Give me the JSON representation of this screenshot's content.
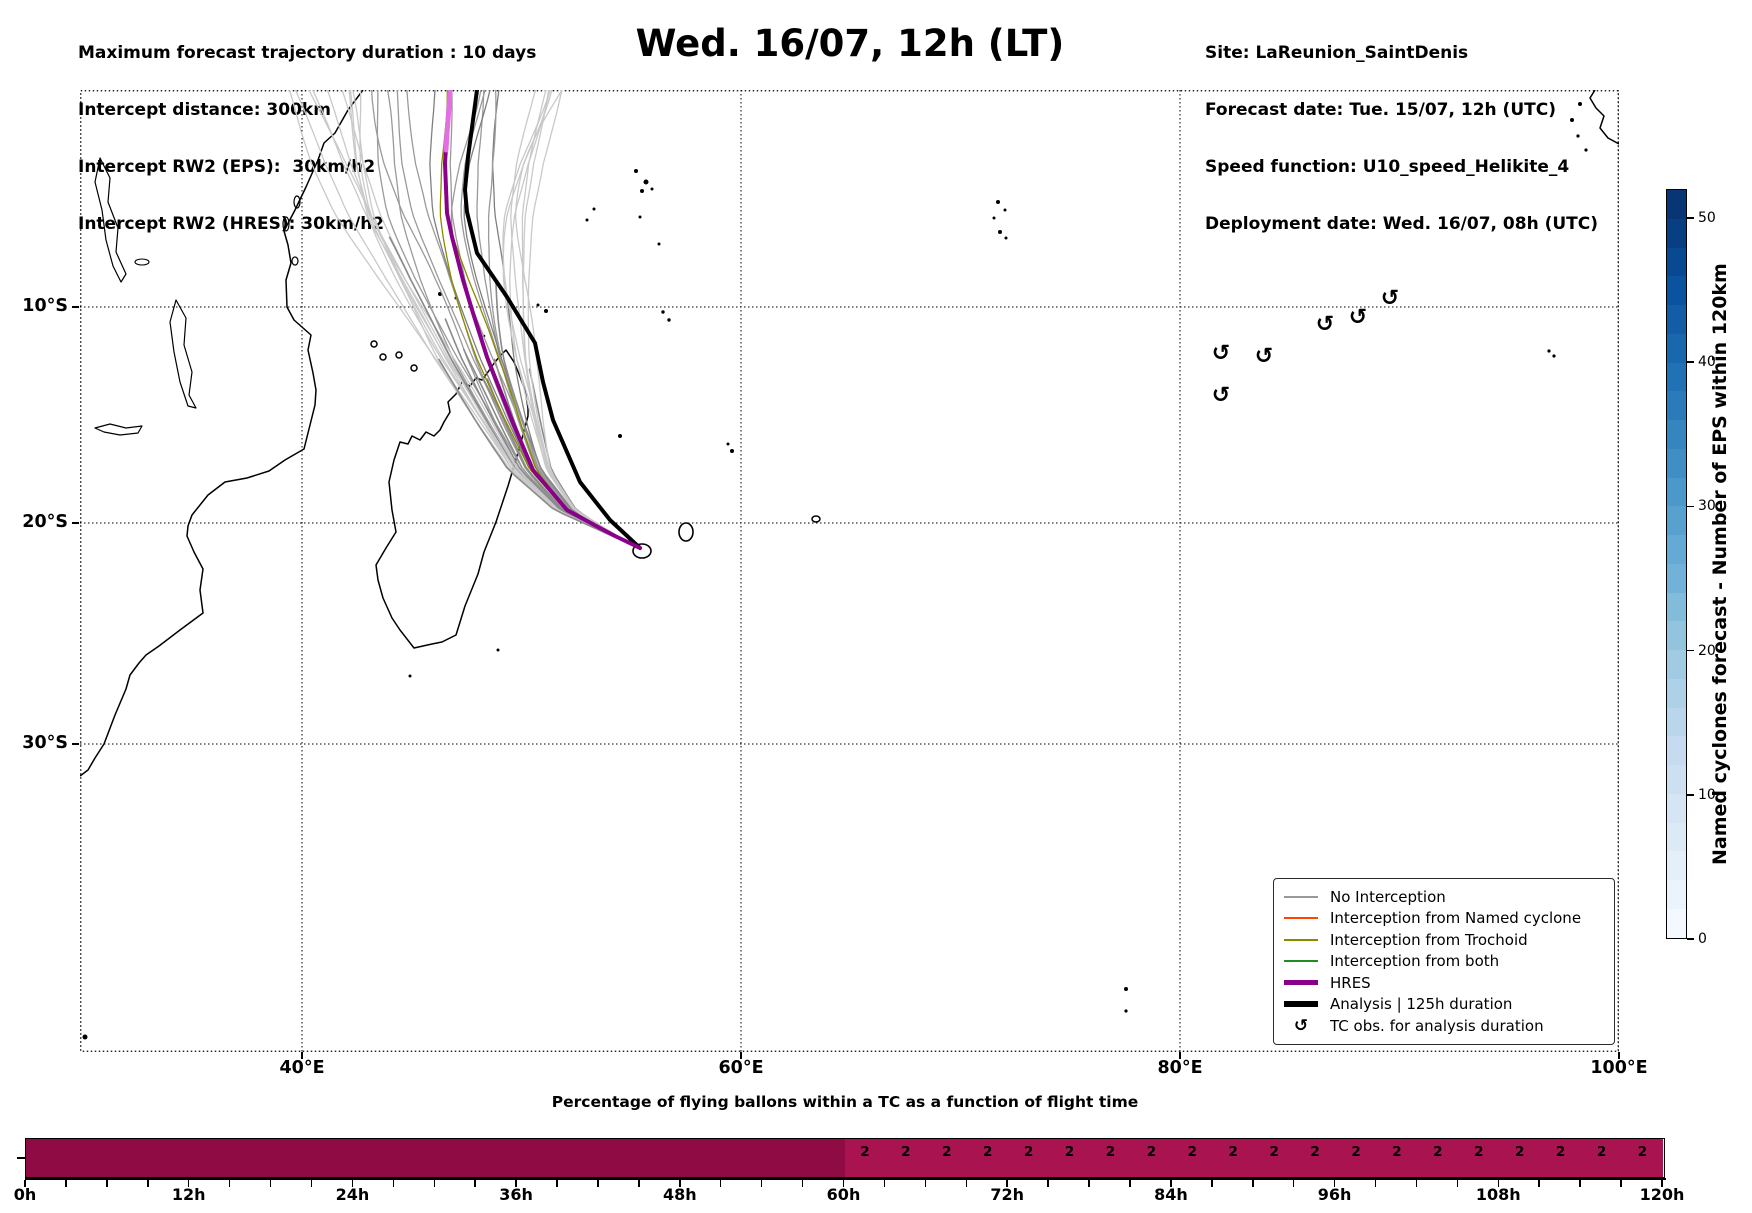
{
  "header": {
    "left_lines": [
      "Maximum forecast trajectory duration : 10 days",
      "Intercept distance: 300km",
      "Intercept RW2 (EPS):  30km/h2",
      "Intercept RW2 (HRES): 30km/h2"
    ],
    "title": "Wed. 16/07, 12h (LT)",
    "right_lines": [
      "Site: LaReunion_SaintDenis",
      "Forecast date: Tue. 15/07, 12h (UTC)",
      "Speed function: U10_speed_Helikite_4",
      "Deployment date: Wed. 16/07, 08h (UTC)"
    ]
  },
  "map": {
    "lat_tick_labels": [
      "10°S",
      "20°S",
      "30°S"
    ],
    "lon_tick_labels": [
      "40°E",
      "60°E",
      "80°E",
      "100°E"
    ],
    "legend_items": [
      {
        "label": "No Interception",
        "color": "#999999",
        "lw": 2,
        "marker": null
      },
      {
        "label": "Interception from Named cyclone",
        "color": "#FF4500",
        "lw": 2,
        "marker": null
      },
      {
        "label": "Interception from Trochoid",
        "color": "#8B8B00",
        "lw": 2,
        "marker": null
      },
      {
        "label": "Interception from both",
        "color": "#228B22",
        "lw": 2,
        "marker": null
      },
      {
        "label": "HRES",
        "color": "#8B008B",
        "lw": 5,
        "marker": null
      },
      {
        "label": "Analysis | 125h duration",
        "color": "#000000",
        "lw": 6,
        "marker": null
      },
      {
        "label": "TC obs. for analysis duration",
        "color": "#000000",
        "lw": 0,
        "marker": "↺"
      }
    ],
    "tc_obs_symbol": "↺",
    "tc_obs_points": [
      [
        1141,
        270
      ],
      [
        1184,
        273
      ],
      [
        1141,
        312
      ],
      [
        1245,
        241
      ],
      [
        1278,
        234
      ],
      [
        1310,
        215
      ]
    ],
    "analysis_track": [
      [
        560,
        458
      ],
      [
        530,
        430
      ],
      [
        500,
        392
      ],
      [
        473,
        330
      ],
      [
        463,
        292
      ],
      [
        455,
        253
      ],
      [
        427,
        207
      ],
      [
        397,
        163
      ],
      [
        387,
        122
      ],
      [
        385,
        100
      ],
      [
        388,
        67
      ],
      [
        393,
        30
      ],
      [
        397,
        0
      ]
    ],
    "hres_track": [
      [
        560,
        458
      ],
      [
        535,
        446
      ],
      [
        520,
        438
      ],
      [
        487,
        420
      ],
      [
        453,
        380
      ],
      [
        433,
        333
      ],
      [
        420,
        300
      ],
      [
        407,
        267
      ],
      [
        393,
        223
      ],
      [
        383,
        190
      ],
      [
        372,
        147
      ],
      [
        367,
        123
      ],
      [
        365,
        73
      ],
      [
        367,
        43
      ],
      [
        369,
        18
      ],
      [
        370,
        0
      ]
    ],
    "colors": {
      "analysis": "#000000",
      "hres": "#8B008B",
      "hres_tip": "#E36FE3",
      "ensemble_gray": "#9a9a9a",
      "ensemble_light": "#c9c9c9",
      "ensemble_dark": "#7f7f7f",
      "trochoid": "#8B8B00"
    }
  },
  "colorbar": {
    "label": "Named cyclones forecast - Number of EPS within 120km",
    "tick_values": [
      0,
      10,
      20,
      30,
      40,
      50
    ],
    "vmin": 0,
    "vmax": 52,
    "n_steps": 26,
    "colormap_anchors": [
      "#F7FBFF",
      "#DEEBF7",
      "#C6DBEF",
      "#9ECAE1",
      "#6BAED6",
      "#4292C6",
      "#2171B5",
      "#08519C",
      "#08306B"
    ]
  },
  "bottom_chart": {
    "title": "Percentage of flying ballons within a TC as a function of flight time",
    "x_tick_labels": [
      "0h",
      "12h",
      "24h",
      "36h",
      "48h",
      "60h",
      "72h",
      "84h",
      "96h",
      "108h",
      "120h"
    ],
    "bin_hours": 3,
    "total_hours": 120,
    "segments": [
      {
        "from_hour": 0,
        "to_hour": 60,
        "color": "#8E0B43",
        "bin_label": ""
      },
      {
        "from_hour": 60,
        "to_hour": 120,
        "color": "#A81350",
        "bin_label": "2"
      }
    ]
  },
  "chart_data": [
    {
      "type": "bar",
      "title": "Percentage of flying ballons within a TC as a function of flight time",
      "x_tick_labels": [
        "0h",
        "12h",
        "24h",
        "36h",
        "48h",
        "60h",
        "72h",
        "84h",
        "96h",
        "108h",
        "120h"
      ],
      "x_range_hours": [
        0,
        120
      ],
      "bin_width_hours": 3,
      "x_bin_starts_hours": [
        0,
        3,
        6,
        9,
        12,
        15,
        18,
        21,
        24,
        27,
        30,
        33,
        36,
        39,
        42,
        45,
        48,
        51,
        54,
        57,
        60,
        63,
        66,
        69,
        72,
        75,
        78,
        81,
        84,
        87,
        90,
        93,
        96,
        99,
        102,
        105,
        108,
        111,
        114,
        117
      ],
      "values_bar_height": [
        100,
        100,
        100,
        100,
        100,
        100,
        100,
        100,
        100,
        100,
        100,
        100,
        100,
        100,
        100,
        100,
        100,
        100,
        100,
        100,
        100,
        100,
        100,
        100,
        100,
        100,
        100,
        100,
        100,
        100,
        100,
        100,
        100,
        100,
        100,
        100,
        100,
        100,
        100,
        100
      ],
      "bin_labels": [
        "",
        "",
        "",
        "",
        "",
        "",
        "",
        "",
        "",
        "",
        "",
        "",
        "",
        "",
        "",
        "",
        "",
        "",
        "",
        "",
        "2",
        "2",
        "2",
        "2",
        "2",
        "2",
        "2",
        "2",
        "2",
        "2",
        "2",
        "2",
        "2",
        "2",
        "2",
        "2",
        "2",
        "2",
        "2",
        "2"
      ],
      "bar_color_0_to_60h": "#8E0B43",
      "bar_color_60_to_120h": "#A81350",
      "legend_position": "none",
      "grid": false
    },
    {
      "type": "heatmap",
      "role": "colorbar",
      "title": "Named cyclones forecast - Number of EPS within 120km",
      "ticks": [
        0,
        10,
        20,
        30,
        40,
        50
      ],
      "range": [
        0,
        52
      ],
      "colormap": "Blues"
    }
  ]
}
